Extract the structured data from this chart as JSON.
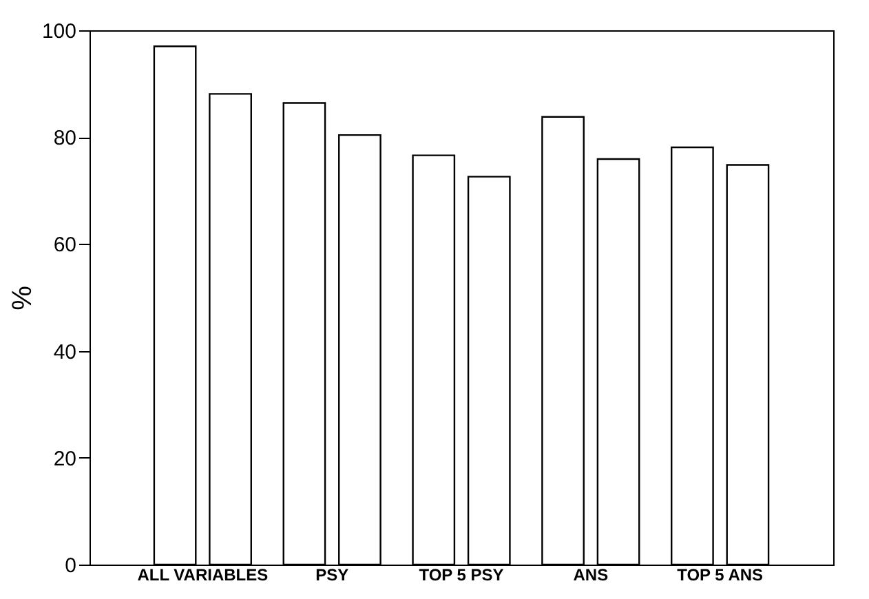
{
  "chart_data": {
    "type": "bar",
    "ylabel": "%",
    "categories": [
      "ALL VARIABLES",
      "PSY",
      "TOP 5 PSY",
      "ANS",
      "TOP 5 ANS"
    ],
    "series": [
      {
        "color": "#ffffff",
        "values": [
          97.0,
          86.4,
          76.6,
          83.8,
          78.1
        ]
      },
      {
        "color": "#ffffff",
        "values": [
          88.1,
          80.4,
          72.6,
          75.9,
          74.8
        ]
      }
    ],
    "ylim": [
      0,
      100
    ],
    "yticks": [
      0,
      20,
      40,
      60,
      80,
      100
    ],
    "grid": false
  }
}
